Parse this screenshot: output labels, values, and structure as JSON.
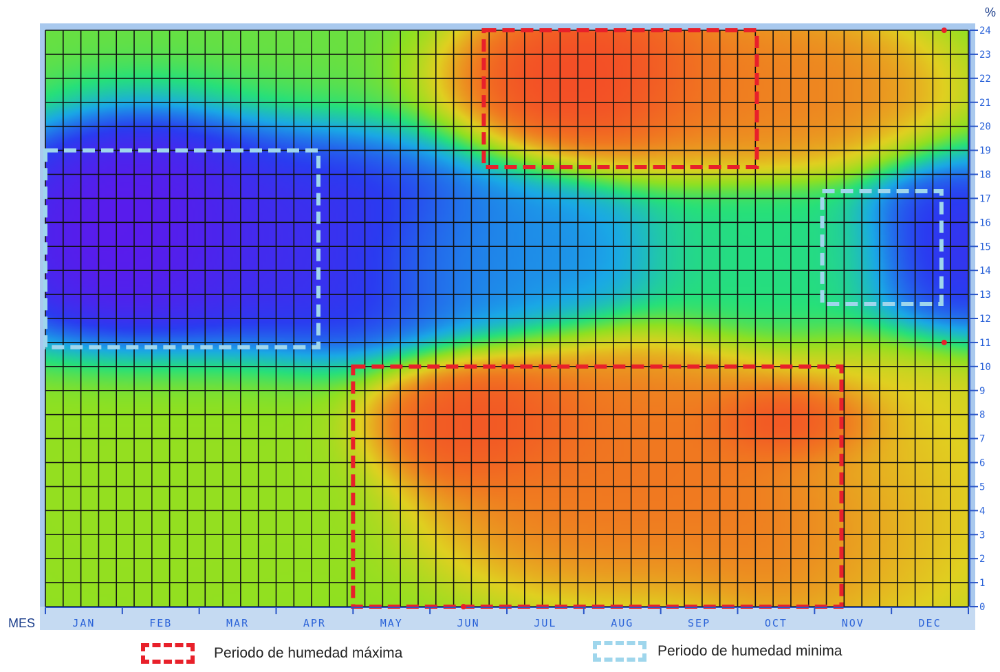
{
  "chart_data": {
    "type": "heatmap",
    "title": "",
    "xlabel": "MES",
    "ylabel": "%",
    "x_categories": [
      "JAN",
      "FEB",
      "MAR",
      "APR",
      "MAY",
      "JUN",
      "JUL",
      "AUG",
      "SEP",
      "OCT",
      "NOV",
      "DEC"
    ],
    "y_ticks": [
      "0",
      "1",
      "2",
      "3",
      "4",
      "5",
      "6",
      "7",
      "8",
      "9",
      "10",
      "11",
      "12",
      "13",
      "14",
      "15",
      "16",
      "17",
      "18",
      "19",
      "20",
      "21",
      "22",
      "23",
      "24"
    ],
    "ylim": [
      0,
      24
    ],
    "grid": true,
    "colorscale": [
      "#6a10ea",
      "#2a3cf0",
      "#1aa8e6",
      "#26e07a",
      "#90e020",
      "#e0d020",
      "#f07a20",
      "#f5342a"
    ],
    "hot_spots": [
      {
        "month": 1.2,
        "value": 15.3,
        "level": 0.0,
        "sx": 1.2,
        "sy": 3.2
      },
      {
        "month": 3.0,
        "value": 14.8,
        "level": 0.08,
        "sx": 2.0,
        "sy": 3.0
      },
      {
        "month": 6.0,
        "value": 14.5,
        "level": 0.25,
        "sx": 1.4,
        "sy": 2.0
      },
      {
        "month": 9.5,
        "value": 14.5,
        "level": 0.42,
        "sx": 1.2,
        "sy": 2.0
      },
      {
        "month": 11.8,
        "value": 14.8,
        "level": 0.1,
        "sx": 0.9,
        "sy": 2.3
      },
      {
        "month": 7.2,
        "value": 22.0,
        "level": 0.98,
        "sx": 1.2,
        "sy": 2.2
      },
      {
        "month": 9.3,
        "value": 21.5,
        "level": 0.86,
        "sx": 1.5,
        "sy": 2.4
      },
      {
        "month": 5.7,
        "value": 7.5,
        "level": 0.96,
        "sx": 1.0,
        "sy": 1.8
      },
      {
        "month": 7.5,
        "value": 6.0,
        "level": 0.88,
        "sx": 1.8,
        "sy": 3.5
      },
      {
        "month": 9.8,
        "value": 7.5,
        "level": 1.0,
        "sx": 0.8,
        "sy": 1.2
      },
      {
        "month": 10.0,
        "value": 4.0,
        "level": 0.88,
        "sx": 1.2,
        "sy": 3.0
      },
      {
        "month": 1.5,
        "value": 5.0,
        "level": 0.58,
        "sx": 1.8,
        "sy": 4.0
      },
      {
        "month": 11.0,
        "value": 5.0,
        "level": 0.72,
        "sx": 1.2,
        "sy": 4.0
      }
    ],
    "regions": [
      {
        "kind": "max",
        "x_range": [
          5.7,
          9.25
        ],
        "y_range": [
          18.3,
          24.0
        ]
      },
      {
        "kind": "max",
        "x_range": [
          4.0,
          10.35
        ],
        "y_range": [
          0.0,
          10.0
        ]
      },
      {
        "kind": "min",
        "x_range": [
          0.0,
          3.55
        ],
        "y_range": [
          10.8,
          19.0
        ]
      },
      {
        "kind": "min",
        "x_range": [
          10.1,
          11.65
        ],
        "y_range": [
          12.6,
          17.3
        ]
      }
    ],
    "markers": [
      {
        "month": 11.65,
        "value": 24
      },
      {
        "month": 11.65,
        "value": 11
      },
      {
        "month": 5.4,
        "value": 0
      }
    ],
    "legend": [
      {
        "label": "Periodo de humedad máxima",
        "color": "#e8202a"
      },
      {
        "label": "Periodo de humedad minima",
        "color": "#9fd6ec"
      }
    ],
    "legend_position": "bottom"
  }
}
